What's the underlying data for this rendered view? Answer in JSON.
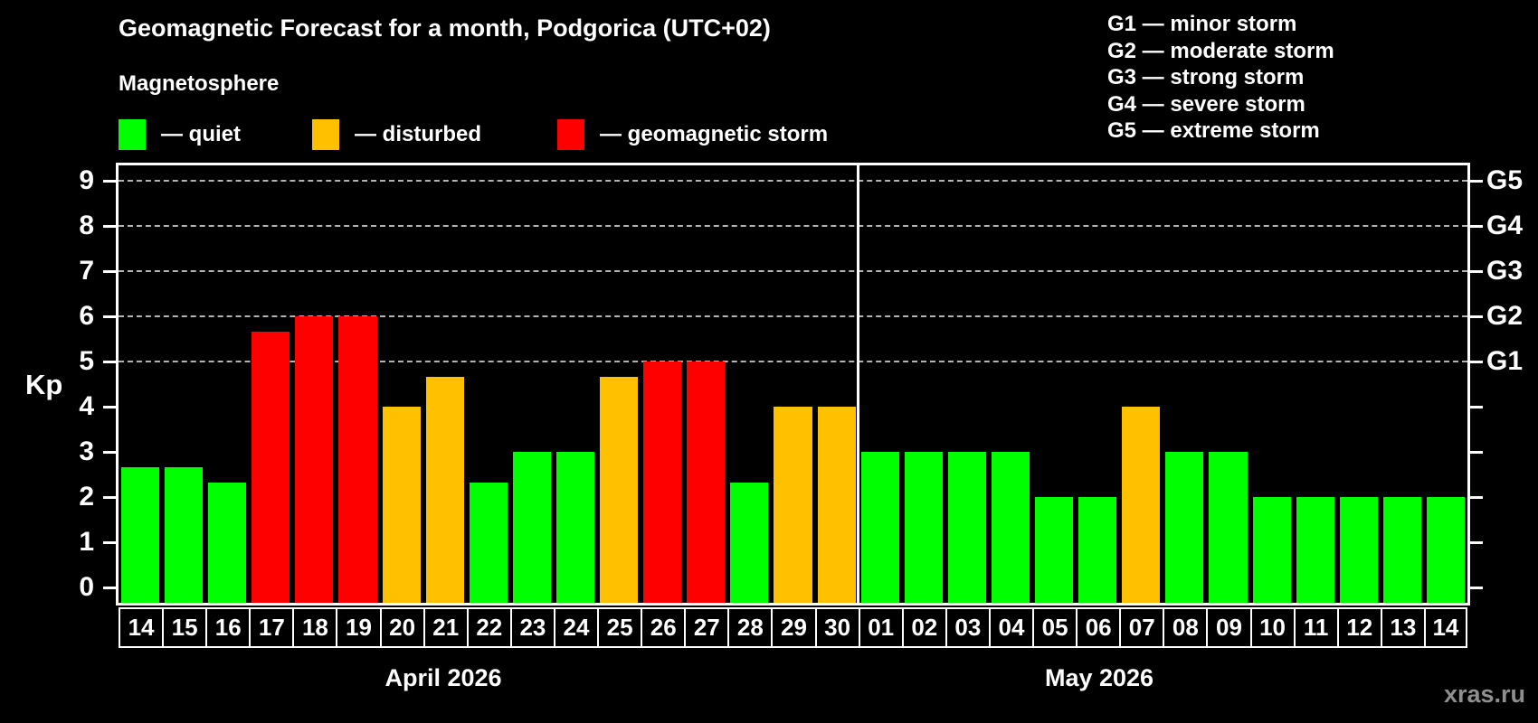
{
  "title": "Geomagnetic Forecast for a month, Podgorica (UTC+02)",
  "subtitle": "Magnetosphere",
  "legend": {
    "items": [
      {
        "label": "— quiet",
        "status": "quiet",
        "color": "#00ff00"
      },
      {
        "label": "— disturbed",
        "status": "disturbed",
        "color": "#ffc000"
      },
      {
        "label": "— geomagnetic storm",
        "status": "storm",
        "color": "#ff0000"
      }
    ]
  },
  "g_legend": [
    "G1 — minor storm",
    "G2 — moderate storm",
    "G3 — strong storm",
    "G4 — severe storm",
    "G5 — extreme storm"
  ],
  "watermark": "xras.ru",
  "chart_data": {
    "type": "bar",
    "title": "Geomagnetic Forecast for a month, Podgorica (UTC+02)",
    "ylabel": "Kp",
    "ylim": [
      0,
      9
    ],
    "yticks": [
      0,
      1,
      2,
      3,
      4,
      5,
      6,
      7,
      8,
      9
    ],
    "gridlines_at": [
      5,
      6,
      7,
      8,
      9
    ],
    "grid": "dashed-horizontal-on-storm-levels-only",
    "legend_position": "top",
    "right_axis_labels": [
      {
        "kp": 5,
        "label": "G1"
      },
      {
        "kp": 6,
        "label": "G2"
      },
      {
        "kp": 7,
        "label": "G3"
      },
      {
        "kp": 8,
        "label": "G4"
      },
      {
        "kp": 9,
        "label": "G5"
      }
    ],
    "status_colors": {
      "quiet": "#00ff00",
      "disturbed": "#ffc000",
      "storm": "#ff0000"
    },
    "series": [
      {
        "month": "April 2026",
        "points": [
          {
            "day": "14",
            "kp": 2.67,
            "status": "quiet"
          },
          {
            "day": "15",
            "kp": 2.67,
            "status": "quiet"
          },
          {
            "day": "16",
            "kp": 2.33,
            "status": "quiet"
          },
          {
            "day": "17",
            "kp": 5.67,
            "status": "storm"
          },
          {
            "day": "18",
            "kp": 6,
            "status": "storm"
          },
          {
            "day": "19",
            "kp": 6,
            "status": "storm"
          },
          {
            "day": "20",
            "kp": 4,
            "status": "disturbed"
          },
          {
            "day": "21",
            "kp": 4.67,
            "status": "disturbed"
          },
          {
            "day": "22",
            "kp": 2.33,
            "status": "quiet"
          },
          {
            "day": "23",
            "kp": 3,
            "status": "quiet"
          },
          {
            "day": "24",
            "kp": 3,
            "status": "quiet"
          },
          {
            "day": "25",
            "kp": 4.67,
            "status": "disturbed"
          },
          {
            "day": "26",
            "kp": 5,
            "status": "storm"
          },
          {
            "day": "27",
            "kp": 5,
            "status": "storm"
          },
          {
            "day": "28",
            "kp": 2.33,
            "status": "quiet"
          },
          {
            "day": "29",
            "kp": 4,
            "status": "disturbed"
          },
          {
            "day": "30",
            "kp": 4,
            "status": "disturbed"
          }
        ]
      },
      {
        "month": "May 2026",
        "points": [
          {
            "day": "01",
            "kp": 3,
            "status": "quiet"
          },
          {
            "day": "02",
            "kp": 3,
            "status": "quiet"
          },
          {
            "day": "03",
            "kp": 3,
            "status": "quiet"
          },
          {
            "day": "04",
            "kp": 3,
            "status": "quiet"
          },
          {
            "day": "05",
            "kp": 2,
            "status": "quiet"
          },
          {
            "day": "06",
            "kp": 2,
            "status": "quiet"
          },
          {
            "day": "07",
            "kp": 4,
            "status": "disturbed"
          },
          {
            "day": "08",
            "kp": 3,
            "status": "quiet"
          },
          {
            "day": "09",
            "kp": 3,
            "status": "quiet"
          },
          {
            "day": "10",
            "kp": 2,
            "status": "quiet"
          },
          {
            "day": "11",
            "kp": 2,
            "status": "quiet"
          },
          {
            "day": "12",
            "kp": 2,
            "status": "quiet"
          },
          {
            "day": "13",
            "kp": 2,
            "status": "quiet"
          },
          {
            "day": "14",
            "kp": 2,
            "status": "quiet"
          }
        ]
      }
    ]
  }
}
